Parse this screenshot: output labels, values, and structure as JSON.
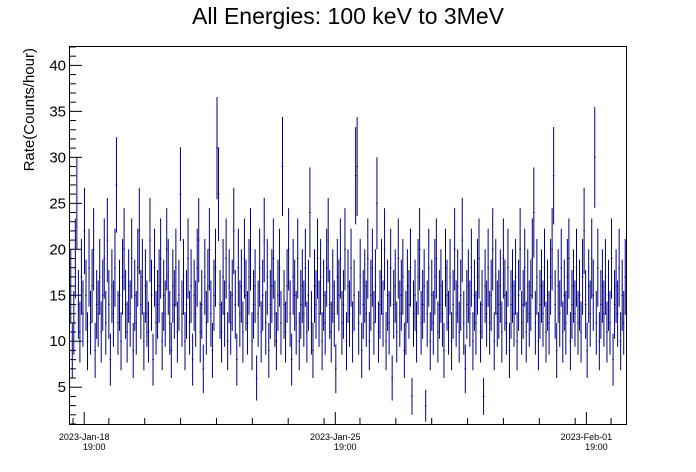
{
  "chart_data": {
    "type": "scatter",
    "title": "All Energies:  100 keV to 3MeV",
    "xlabel": "",
    "ylabel": "Rate(Counts/hour)",
    "ylim": [
      1,
      42
    ],
    "x_range_hours": [
      0,
      372
    ],
    "y_ticks": [
      5,
      10,
      15,
      20,
      25,
      30,
      35,
      40
    ],
    "x_ticks": [
      {
        "label_date": "2023-Jan-18",
        "label_time": "19:00",
        "hour": 9.5
      },
      {
        "label_date": "2023-Jan-25",
        "label_time": "19:00",
        "hour": 177.5
      },
      {
        "label_date": "2023-Feb-01",
        "label_time": "19:00",
        "hour": 345.5
      }
    ],
    "series": [
      {
        "color": "#000080",
        "error_bars": "poisson (sqrt(N)) vertical error bars",
        "points_per_hour": "one point per hour, values mostly 5–30, estimated from image",
        "values": [
          16,
          9,
          12,
          19,
          25,
          14,
          11,
          17,
          13,
          22,
          15,
          10,
          18,
          12,
          16,
          20,
          9,
          14,
          13,
          17,
          11,
          15,
          19,
          12,
          21,
          14,
          8,
          16,
          13,
          18,
          27,
          12,
          15,
          10,
          17,
          20,
          14,
          11,
          16,
          13,
          19,
          9,
          15,
          12,
          18,
          22,
          14,
          17,
          10,
          16,
          13,
          11,
          21,
          15,
          8,
          18,
          12,
          14,
          16,
          19,
          10,
          15,
          13,
          20,
          17,
          12,
          9,
          16,
          14,
          18,
          11,
          15,
          26,
          13,
          17,
          10,
          14,
          19,
          12,
          16,
          8,
          15,
          13,
          18,
          21,
          11,
          14,
          7,
          17,
          12,
          16,
          20,
          13,
          9,
          15,
          18,
          31,
          26,
          14,
          11,
          17,
          13,
          19,
          10,
          16,
          12,
          15,
          22,
          14,
          8,
          18,
          13,
          16,
          11,
          19,
          15,
          12,
          17,
          20,
          10,
          14,
          16,
          6,
          13,
          18,
          11,
          15,
          21,
          12,
          17,
          9,
          14,
          16,
          19,
          13,
          10,
          15,
          18,
          12,
          29,
          14,
          11,
          16,
          20,
          13,
          8,
          17,
          15,
          12,
          19,
          10,
          14,
          16,
          13,
          18,
          11,
          15,
          24,
          12,
          9,
          16,
          14,
          19,
          13,
          17,
          10,
          15,
          12,
          18,
          21,
          14,
          11,
          16,
          13,
          7,
          17,
          15,
          19,
          12,
          14,
          20,
          10,
          16,
          13,
          18,
          11,
          15,
          28,
          29,
          12,
          17,
          9,
          14,
          16,
          13,
          19,
          10,
          15,
          18,
          12,
          16,
          25,
          11,
          14,
          17,
          13,
          20,
          10,
          15,
          12,
          18,
          6,
          14,
          16,
          11,
          19,
          13,
          15,
          17,
          9,
          12,
          16,
          14,
          18,
          4,
          13,
          15,
          11,
          17,
          20,
          12,
          14,
          16,
          3,
          13,
          18,
          10,
          15,
          12,
          17,
          19,
          11,
          14,
          16,
          13,
          9,
          18,
          15,
          12,
          17,
          10,
          14,
          20,
          13,
          16,
          11,
          15,
          21,
          12,
          7,
          14,
          16,
          13,
          18,
          10,
          15,
          12,
          17,
          19,
          11,
          14,
          4,
          16,
          13,
          18,
          12,
          15,
          20,
          10,
          17,
          13,
          14,
          16,
          11,
          19,
          15,
          12,
          18,
          9,
          14,
          16,
          13,
          17,
          10,
          15,
          20,
          12,
          14,
          18,
          11,
          16,
          13,
          15,
          19,
          24,
          12,
          17,
          10,
          14,
          16,
          13,
          18,
          11,
          15,
          12,
          17,
          20,
          28,
          14,
          9,
          16,
          13,
          18,
          11,
          15,
          12,
          17,
          19,
          10,
          14,
          16,
          13,
          18,
          12,
          15,
          11,
          17,
          22,
          14,
          9,
          16,
          13,
          19,
          15,
          30,
          12,
          18,
          10,
          14,
          16,
          13,
          17,
          11,
          15,
          12,
          19,
          8,
          14,
          16,
          13,
          18,
          10,
          15,
          12,
          17
        ]
      }
    ]
  }
}
